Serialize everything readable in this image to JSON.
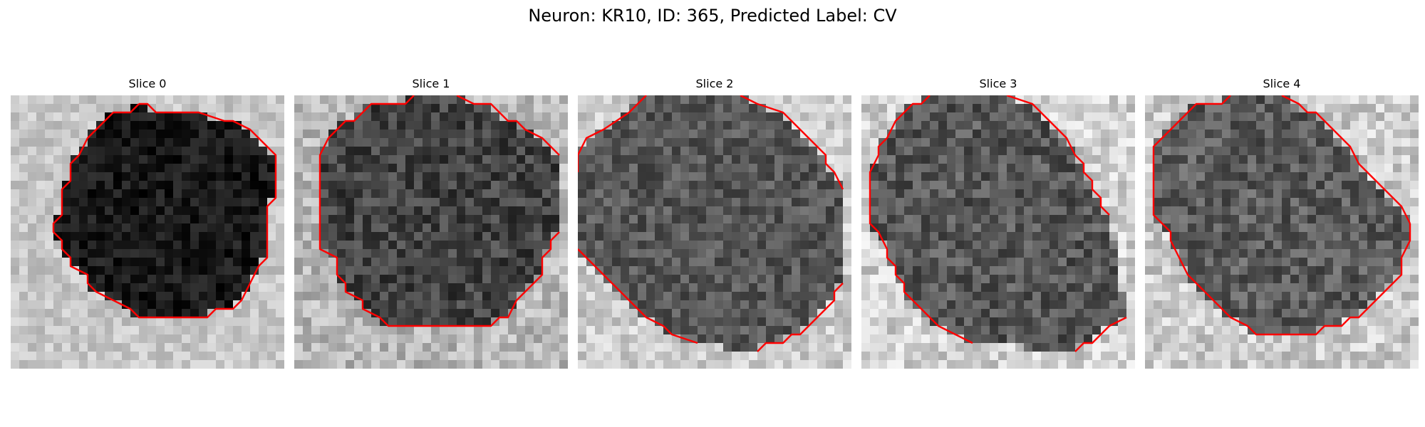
{
  "figure": {
    "title": "Neuron: KR10, ID: 365, Predicted Label: CV",
    "contour_color": "#ff0000",
    "colormap": "gray"
  },
  "panels": [
    {
      "label": "Slice 0",
      "image": {
        "grid": 32,
        "body_brightness": 0.1,
        "background_brightness": 0.78,
        "noise": 0.1
      },
      "contour": [
        [
          15,
          1
        ],
        [
          16,
          1
        ],
        [
          17,
          2
        ],
        [
          22,
          2
        ],
        [
          25,
          3
        ],
        [
          26,
          3
        ],
        [
          28,
          4
        ],
        [
          31,
          7
        ],
        [
          31,
          10
        ],
        [
          31,
          12
        ],
        [
          30,
          13
        ],
        [
          30,
          19
        ],
        [
          29,
          20
        ],
        [
          28,
          22
        ],
        [
          27,
          24
        ],
        [
          26,
          25
        ],
        [
          24,
          25
        ],
        [
          23,
          26
        ],
        [
          15,
          26
        ],
        [
          14,
          25
        ],
        [
          10,
          23
        ],
        [
          9,
          22
        ],
        [
          9,
          21
        ],
        [
          7,
          20
        ],
        [
          7,
          19
        ],
        [
          6,
          18
        ],
        [
          6,
          17
        ],
        [
          5,
          16
        ],
        [
          5,
          15
        ],
        [
          6,
          14
        ],
        [
          6,
          11
        ],
        [
          7,
          10
        ],
        [
          7,
          8
        ],
        [
          8,
          7
        ],
        [
          9,
          5
        ],
        [
          11,
          3
        ],
        [
          12,
          2
        ],
        [
          14,
          2
        ],
        [
          15,
          1
        ]
      ],
      "open_contour": false
    },
    {
      "label": "Slice 1",
      "image": {
        "grid": 32,
        "body_brightness": 0.26,
        "background_brightness": 0.72,
        "noise": 0.14
      },
      "contour": [
        [
          [
            14,
            0
          ],
          [
            13,
            1
          ],
          [
            9,
            1
          ],
          [
            7,
            3
          ],
          [
            6,
            3
          ],
          [
            4,
            5
          ],
          [
            3,
            7
          ],
          [
            3,
            15
          ],
          [
            3,
            18
          ],
          [
            5,
            19
          ],
          [
            5,
            21
          ],
          [
            6,
            22
          ],
          [
            6,
            23
          ],
          [
            8,
            24
          ],
          [
            8,
            25
          ],
          [
            10,
            26
          ],
          [
            11,
            27
          ],
          [
            23,
            27
          ],
          [
            24,
            26
          ],
          [
            25,
            26
          ],
          [
            26,
            24
          ],
          [
            27,
            23
          ],
          [
            28,
            22
          ],
          [
            29,
            21
          ],
          [
            29,
            19
          ],
          [
            30,
            18
          ],
          [
            30,
            17
          ],
          [
            31,
            16
          ]
        ],
        [
          [
            19,
            0
          ],
          [
            21,
            1
          ],
          [
            23,
            1
          ],
          [
            24,
            2
          ],
          [
            25,
            3
          ],
          [
            26,
            3
          ],
          [
            27,
            4
          ],
          [
            29,
            5
          ],
          [
            31,
            7
          ]
        ]
      ],
      "open_contour": true
    },
    {
      "label": "Slice 2",
      "image": {
        "grid": 32,
        "body_brightness": 0.34,
        "background_brightness": 0.8,
        "noise": 0.13
      },
      "contour": [
        [
          [
            8,
            0
          ],
          [
            7,
            1
          ],
          [
            6,
            2
          ],
          [
            3,
            4
          ],
          [
            1,
            5
          ],
          [
            0,
            7
          ],
          [
            0,
            9
          ]
        ],
        [
          [
            19,
            0
          ],
          [
            21,
            1
          ],
          [
            24,
            2
          ],
          [
            26,
            4
          ],
          [
            28,
            6
          ],
          [
            29,
            7
          ],
          [
            29,
            8
          ],
          [
            30,
            9
          ],
          [
            31,
            11
          ]
        ],
        [
          [
            0,
            18
          ],
          [
            1,
            19
          ],
          [
            2,
            20
          ],
          [
            3,
            21
          ],
          [
            4,
            22
          ],
          [
            5,
            23
          ],
          [
            6,
            24
          ],
          [
            7,
            25
          ],
          [
            8,
            26
          ],
          [
            10,
            27
          ],
          [
            11,
            28
          ],
          [
            14,
            29
          ]
        ],
        [
          [
            21,
            30
          ],
          [
            22,
            29
          ],
          [
            24,
            29
          ],
          [
            25,
            28
          ],
          [
            26,
            28
          ],
          [
            27,
            27
          ],
          [
            28,
            26
          ],
          [
            29,
            25
          ],
          [
            30,
            24
          ],
          [
            30,
            23
          ],
          [
            31,
            22
          ]
        ]
      ],
      "open_contour": true
    },
    {
      "label": "Slice 3",
      "image": {
        "grid": 32,
        "body_brightness": 0.34,
        "background_brightness": 0.82,
        "noise": 0.15
      },
      "contour": [
        [
          [
            8,
            0
          ],
          [
            7,
            1
          ],
          [
            6,
            1
          ],
          [
            4,
            3
          ],
          [
            3,
            5
          ],
          [
            2,
            6
          ],
          [
            2,
            7
          ],
          [
            1,
            9
          ],
          [
            1,
            15
          ],
          [
            2,
            16
          ],
          [
            3,
            18
          ],
          [
            3,
            19
          ],
          [
            4,
            20
          ],
          [
            4,
            21
          ],
          [
            5,
            22
          ],
          [
            5,
            23
          ],
          [
            6,
            24
          ],
          [
            7,
            25
          ],
          [
            8,
            26
          ],
          [
            9,
            27
          ],
          [
            11,
            28
          ],
          [
            13,
            29
          ]
        ],
        [
          [
            17,
            0
          ],
          [
            20,
            1
          ],
          [
            22,
            3
          ],
          [
            23,
            4
          ],
          [
            24,
            5
          ],
          [
            25,
            7
          ],
          [
            26,
            8
          ],
          [
            26,
            9
          ],
          [
            27,
            10
          ],
          [
            27,
            11
          ],
          [
            28,
            12
          ],
          [
            28,
            13
          ],
          [
            29,
            14
          ]
        ],
        [
          [
            25,
            30
          ],
          [
            26,
            29
          ],
          [
            27,
            29
          ],
          [
            28,
            28
          ],
          [
            29,
            27
          ],
          [
            31,
            26
          ]
        ]
      ],
      "open_contour": true
    },
    {
      "label": "Slice 4",
      "image": {
        "grid": 32,
        "body_brightness": 0.36,
        "background_brightness": 0.8,
        "noise": 0.15
      },
      "contour": [
        [
          [
            10,
            0
          ],
          [
            9,
            1
          ],
          [
            6,
            1
          ],
          [
            5,
            2
          ],
          [
            4,
            3
          ],
          [
            3,
            4
          ],
          [
            2,
            5
          ],
          [
            1,
            6
          ],
          [
            1,
            14
          ],
          [
            2,
            15
          ],
          [
            3,
            16
          ],
          [
            3,
            17
          ],
          [
            4,
            19
          ],
          [
            5,
            21
          ],
          [
            6,
            22
          ],
          [
            7,
            23
          ],
          [
            8,
            24
          ],
          [
            10,
            26
          ],
          [
            12,
            27
          ],
          [
            13,
            28
          ],
          [
            20,
            28
          ],
          [
            21,
            27
          ],
          [
            23,
            27
          ],
          [
            24,
            26
          ],
          [
            25,
            26
          ],
          [
            26,
            25
          ],
          [
            27,
            24
          ],
          [
            28,
            23
          ],
          [
            29,
            22
          ],
          [
            30,
            21
          ],
          [
            30,
            19
          ],
          [
            31,
            17
          ],
          [
            31,
            15
          ]
        ],
        [
          [
            16,
            0
          ],
          [
            18,
            1
          ],
          [
            19,
            2
          ],
          [
            20,
            2
          ],
          [
            22,
            4
          ],
          [
            23,
            5
          ],
          [
            24,
            6
          ],
          [
            25,
            8
          ],
          [
            26,
            9
          ],
          [
            27,
            10
          ],
          [
            28,
            11
          ],
          [
            29,
            12
          ],
          [
            30,
            13
          ],
          [
            31,
            15
          ]
        ]
      ],
      "open_contour": true
    }
  ]
}
